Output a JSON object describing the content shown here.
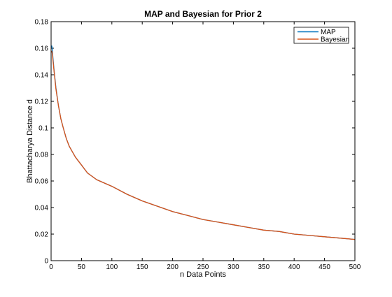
{
  "chart_data": {
    "type": "line",
    "title": "MAP and Bayesian for Prior 2",
    "xlabel": "n Data Points",
    "ylabel": "Bhattacharya Distance d",
    "xlim": [
      0,
      500
    ],
    "ylim": [
      0,
      0.18
    ],
    "xticks": [
      0,
      50,
      100,
      150,
      200,
      250,
      300,
      350,
      400,
      450,
      500
    ],
    "yticks": [
      0,
      0.02,
      0.04,
      0.06,
      0.08,
      0.1,
      0.12,
      0.14,
      0.16,
      0.18
    ],
    "xtick_labels": [
      "0",
      "50",
      "100",
      "150",
      "200",
      "250",
      "300",
      "350",
      "400",
      "450",
      "500"
    ],
    "ytick_labels": [
      "0",
      "0.02",
      "0.04",
      "0.06",
      "0.08",
      "0.1",
      "0.12",
      "0.14",
      "0.16",
      "0.18"
    ],
    "grid": false,
    "legend_position": "top-right",
    "series": [
      {
        "name": "MAP",
        "color": "#0072BD",
        "x": [
          1,
          2,
          3,
          5,
          8,
          12,
          16,
          20,
          25,
          30,
          40,
          50,
          60,
          75,
          100,
          125,
          150,
          175,
          200,
          225,
          250,
          275,
          300,
          325,
          350,
          375,
          400,
          425,
          450,
          475,
          500
        ],
        "y": [
          0.162,
          0.159,
          0.153,
          0.143,
          0.13,
          0.117,
          0.107,
          0.1,
          0.092,
          0.086,
          0.078,
          0.072,
          0.066,
          0.061,
          0.056,
          0.05,
          0.045,
          0.041,
          0.037,
          0.034,
          0.031,
          0.029,
          0.027,
          0.025,
          0.023,
          0.022,
          0.02,
          0.019,
          0.018,
          0.017,
          0.016
        ]
      },
      {
        "name": "Bayesian",
        "color": "#D95319",
        "x": [
          1,
          2,
          3,
          5,
          8,
          12,
          16,
          20,
          25,
          30,
          40,
          50,
          60,
          75,
          100,
          125,
          150,
          175,
          200,
          225,
          250,
          275,
          300,
          325,
          350,
          375,
          400,
          425,
          450,
          475,
          500
        ],
        "y": [
          0.158,
          0.156,
          0.151,
          0.142,
          0.129,
          0.117,
          0.107,
          0.1,
          0.092,
          0.086,
          0.078,
          0.072,
          0.066,
          0.061,
          0.056,
          0.05,
          0.045,
          0.041,
          0.037,
          0.034,
          0.031,
          0.029,
          0.027,
          0.025,
          0.023,
          0.022,
          0.02,
          0.019,
          0.018,
          0.017,
          0.016
        ]
      }
    ]
  }
}
